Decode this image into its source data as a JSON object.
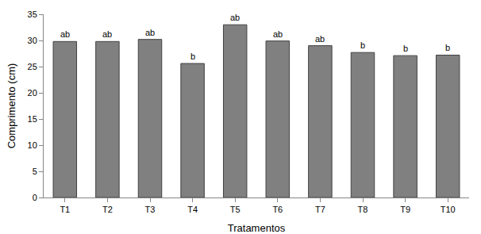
{
  "chart_data": {
    "type": "bar",
    "x_label": "Tratamentos",
    "y_label": "Comprimento (cm)",
    "categories": [
      "T1",
      "T2",
      "T3",
      "T4",
      "T5",
      "T6",
      "T7",
      "T8",
      "T9",
      "T10"
    ],
    "values": [
      29.8,
      29.8,
      30.2,
      25.6,
      33.0,
      29.9,
      29.0,
      27.7,
      27.1,
      27.2
    ],
    "annotations": [
      {
        "category": "T1",
        "text": "ab"
      },
      {
        "category": "T2",
        "text": "ab"
      },
      {
        "category": "T3",
        "text": "ab"
      },
      {
        "category": "T4",
        "text": "b"
      },
      {
        "category": "T5",
        "text": "ab"
      },
      {
        "category": "T6",
        "text": "ab"
      },
      {
        "category": "T7",
        "text": "ab"
      },
      {
        "category": "T8",
        "text": "b"
      },
      {
        "category": "T9",
        "text": "b"
      },
      {
        "category": "T10",
        "text": "b"
      }
    ],
    "color": "#808080",
    "ylim": [
      0,
      35
    ],
    "yticks": [
      0,
      5,
      10,
      15,
      20,
      25,
      30,
      35
    ],
    "grid": false
  }
}
